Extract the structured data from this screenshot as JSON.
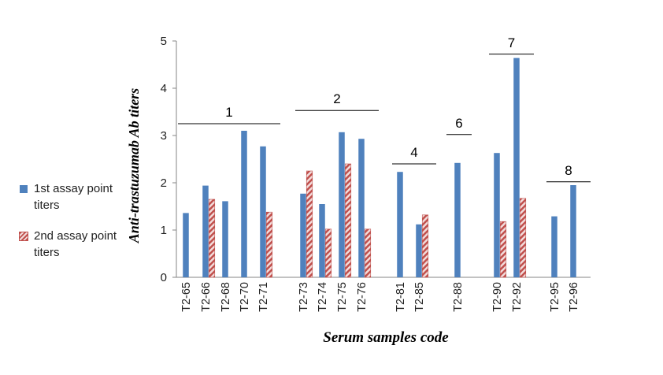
{
  "chart_data": {
    "type": "bar",
    "ylabel": "Anti-trastuzumab Ab titers",
    "xlabel": "Serum samples code",
    "ylim": [
      0,
      5
    ],
    "yticks": [
      "0",
      "1",
      "2",
      "3",
      "4",
      "5"
    ],
    "grid": false,
    "legend_position": "left",
    "categories": [
      "T2-65",
      "T2-66",
      "T2-68",
      "T2-70",
      "T2-71",
      "T2-73",
      "T2-74",
      "T2-75",
      "T2-76",
      "T2-81",
      "T2-85",
      "T2-88",
      "T2-90",
      "T2-92",
      "T2-95",
      "T2-96"
    ],
    "series": [
      {
        "name": "1st assay point titers",
        "color": "#4f81bd",
        "values": [
          1.36,
          1.94,
          1.61,
          3.1,
          2.77,
          1.77,
          1.55,
          3.07,
          2.93,
          2.23,
          1.12,
          2.42,
          2.63,
          4.64,
          1.29,
          1.95
        ]
      },
      {
        "name": "2nd assay point titers",
        "color": "#c0504d",
        "values": [
          null,
          1.65,
          null,
          null,
          1.38,
          2.25,
          1.02,
          2.4,
          1.02,
          null,
          1.32,
          null,
          1.18,
          1.67,
          null,
          null
        ]
      }
    ],
    "annotations": [
      {
        "text": "1",
        "categories": [
          "T2-65",
          "T2-71"
        ],
        "level": 3.25
      },
      {
        "text": "2",
        "categories": [
          "T2-73",
          "T2-76"
        ],
        "level": 3.53
      },
      {
        "text": "4",
        "categories": [
          "T2-81",
          "T2-85"
        ],
        "level": 2.4
      },
      {
        "text": "6",
        "categories": [
          "T2-88"
        ],
        "level": 3.02
      },
      {
        "text": "7",
        "categories": [
          "T2-90",
          "T2-92"
        ],
        "level": 4.72
      },
      {
        "text": "8",
        "categories": [
          "T2-95",
          "T2-96"
        ],
        "level": 2.02
      }
    ]
  }
}
